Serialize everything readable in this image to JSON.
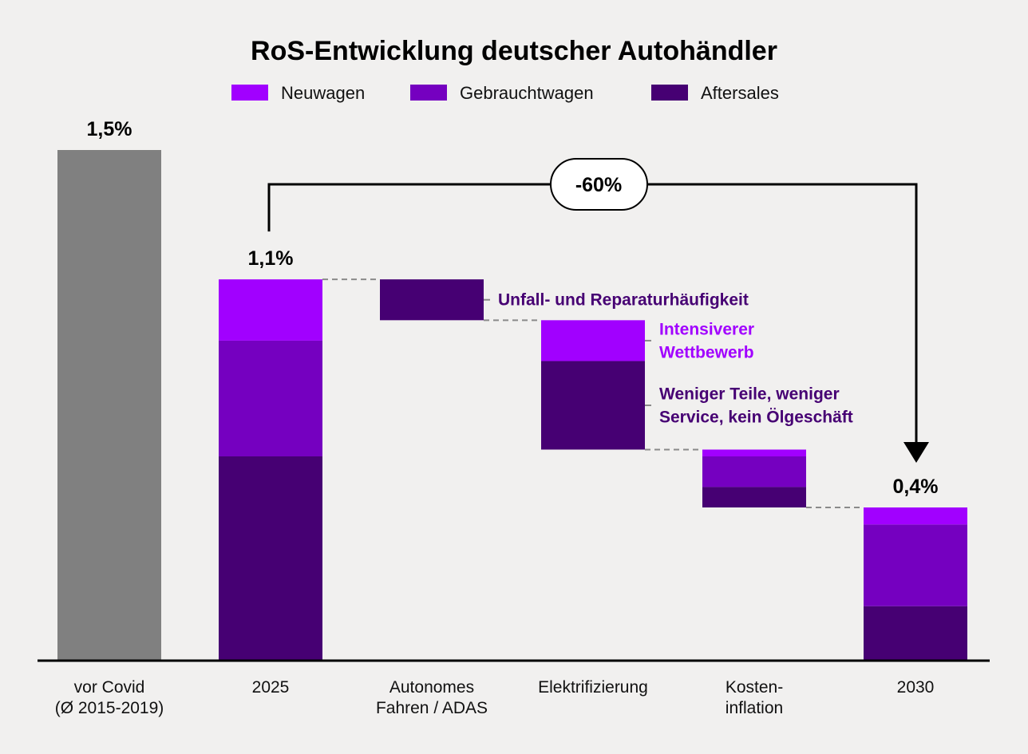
{
  "chart_data": {
    "type": "bar",
    "subtype": "stacked-waterfall",
    "title": "RoS-Entwicklung deutscher Autohändler",
    "xlabel": "",
    "ylabel": "",
    "ylim": [
      0,
      1.5
    ],
    "grid": false,
    "legend_position": "top-center",
    "legend": [
      {
        "name": "Neuwagen",
        "color": "#a100ff"
      },
      {
        "name": "Gebrauchtwagen",
        "color": "#7500c0"
      },
      {
        "name": "Aftersales",
        "color": "#460073"
      }
    ],
    "total_color": "#808080",
    "categories": [
      [
        "vor Covid",
        "(Ø 2015-2019)"
      ],
      [
        "2025"
      ],
      [
        "Autonomes",
        "Fahren / ADAS"
      ],
      [
        "Elektrifizierung"
      ],
      [
        "Kosten-",
        "inflation"
      ],
      [
        "2030"
      ]
    ],
    "bars": [
      {
        "kind": "total-single",
        "value": 1.5,
        "label": "1,5%"
      },
      {
        "kind": "total",
        "label": "1,1%",
        "segments": {
          "Neuwagen": 0.18,
          "Gebrauchtwagen": 0.34,
          "Aftersales": 0.6
        }
      },
      {
        "kind": "delta",
        "segments": {
          "Aftersales": -0.12
        }
      },
      {
        "kind": "delta",
        "segments": {
          "Neuwagen": -0.12,
          "Aftersales": -0.26
        }
      },
      {
        "kind": "delta",
        "segments": {
          "Neuwagen": -0.02,
          "Gebrauchtwagen": -0.09,
          "Aftersales": -0.06
        }
      },
      {
        "kind": "total",
        "label": "0,4%",
        "segments": {
          "Neuwagen": 0.05,
          "Gebrauchtwagen": 0.24,
          "Aftersales": 0.16
        }
      }
    ],
    "annotations": [
      {
        "text": [
          "Unfall- und Reparaturhäufigkeit"
        ],
        "color": "#460073",
        "bar": 2,
        "segment": "Aftersales"
      },
      {
        "text": [
          "Intensiverer",
          "Wettbewerb"
        ],
        "color": "#a100ff",
        "bar": 3,
        "segment": "Neuwagen"
      },
      {
        "text": [
          "Weniger Teile, weniger",
          "Service, kein Ölgeschäft"
        ],
        "color": "#460073",
        "bar": 3,
        "segment": "Aftersales"
      }
    ],
    "change_callout": {
      "label": "-60%",
      "from_bar": 1,
      "to_bar": 5
    }
  }
}
